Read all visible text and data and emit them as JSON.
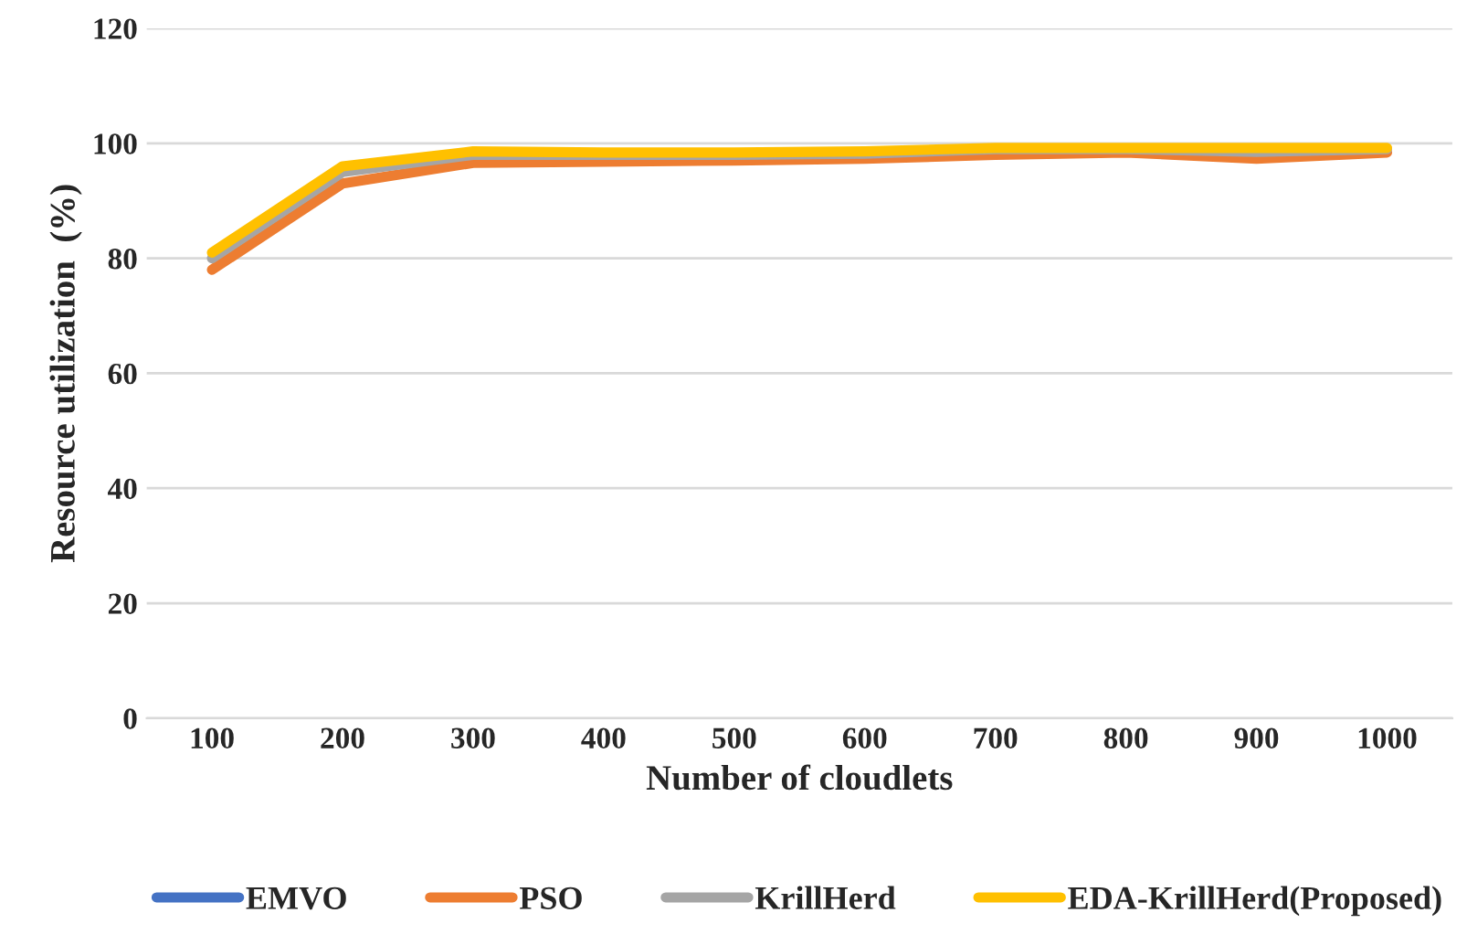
{
  "chart_data": {
    "type": "line",
    "xlabel": "Number of cloudlets",
    "ylabel": "Resource utilization  (%)",
    "categories": [
      "100",
      "200",
      "300",
      "400",
      "500",
      "600",
      "700",
      "800",
      "900",
      "1000"
    ],
    "series": [
      {
        "name": "EMVO",
        "color": "#4472c4",
        "values": [
          null,
          null,
          null,
          null,
          null,
          null,
          null,
          null,
          null,
          null
        ]
      },
      {
        "name": "PSO",
        "color": "#ed7d31",
        "values": [
          78,
          93,
          96.6,
          96.8,
          97,
          97.3,
          98,
          98.4,
          97.3,
          98.4
        ]
      },
      {
        "name": "KrillHerd",
        "color": "#a5a5a5",
        "values": [
          80,
          95,
          98,
          98,
          98,
          98.2,
          99,
          99,
          98.5,
          99
        ]
      },
      {
        "name": "EDA-KrillHerd(Proposed)",
        "color": "#ffc000",
        "values": [
          81,
          96,
          98.6,
          98.4,
          98.4,
          98.6,
          99.2,
          99.2,
          99.2,
          99.2
        ]
      }
    ],
    "ylim": [
      0,
      120
    ],
    "yticks": [
      0,
      20,
      40,
      60,
      80,
      100,
      120
    ],
    "grid": "y",
    "legend": "bottom",
    "marker": "none",
    "line_style": "solid"
  }
}
